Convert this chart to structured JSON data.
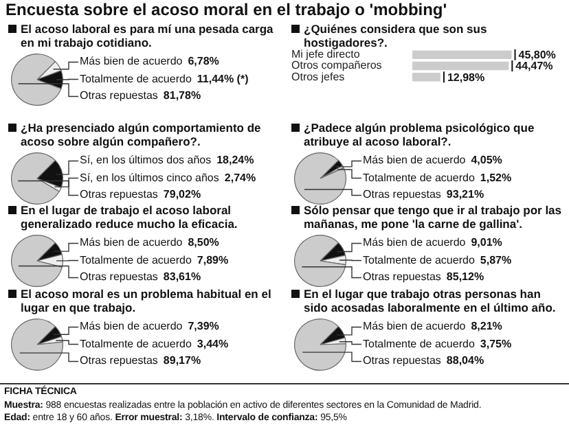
{
  "chart_data": [
    {
      "type": "pie",
      "title": "El acoso laboral es para mí una pesada carga en mi trabajo cotidiano.",
      "annotations": [
        "Encuesta sobre el acoso moral en el trabajo o 'mobbing'"
      ],
      "categories": [
        "Más bien de acuerdo",
        "Totalmente de acuerdo",
        "Otras repuestas"
      ],
      "values": [
        6.78,
        11.44,
        81.78
      ],
      "value_labels": [
        "6,78%",
        "11,44% (*)",
        "81,78%"
      ],
      "colors": [
        "#eeeeee",
        "#111111",
        "#cccccc"
      ]
    },
    {
      "type": "bar",
      "orientation": "horizontal",
      "title": "¿Quiénes considera que son sus hostigadores?.",
      "categories": [
        "Mi jefe directo",
        "Otros compañeros",
        "Otros jefes"
      ],
      "values": [
        45.8,
        44.47,
        12.98
      ],
      "value_labels": [
        "45,80%",
        "44,47%",
        "12,98%"
      ],
      "color": "#cccccc"
    },
    {
      "type": "pie",
      "title": "¿Ha presenciado algún comportamiento de acoso sobre algún compañero?.",
      "categories": [
        "Sí, en los últimos dos años",
        "Sí, en los últimos cinco años",
        "Otras repuestas"
      ],
      "values": [
        18.24,
        2.74,
        79.02
      ],
      "value_labels": [
        "18,24%",
        "2,74%",
        "79,02%"
      ],
      "colors": [
        "#111111",
        "#eeeeee",
        "#cccccc"
      ]
    },
    {
      "type": "pie",
      "title": "¿Padece algún problema psicológico que atribuye al acoso laboral?.",
      "categories": [
        "Más bien de acuerdo",
        "Totalmente de acuerdo",
        "Otras repuestas"
      ],
      "values": [
        4.05,
        1.52,
        93.21
      ],
      "value_labels": [
        "4,05%",
        "1,52%",
        "93,21%"
      ],
      "colors": [
        "#111111",
        "#eeeeee",
        "#cccccc"
      ]
    },
    {
      "type": "pie",
      "title": "En el lugar de trabajo el acoso laboral generalizado reduce mucho la eficacia.",
      "categories": [
        "Más bien de acuerdo",
        "Totalmente de acuerdo",
        "Otras repuestas"
      ],
      "values": [
        8.5,
        7.89,
        83.61
      ],
      "value_labels": [
        "8,50%",
        "7,89%",
        "83,61%"
      ],
      "colors": [
        "#111111",
        "#eeeeee",
        "#cccccc"
      ]
    },
    {
      "type": "pie",
      "title": "Sólo pensar que tengo que ir al trabajo por las mañanas, me pone 'la carne de gallina'.",
      "categories": [
        "Más bien de acuerdo",
        "Totalmente de acuerdo",
        "Otras repuestas"
      ],
      "values": [
        9.01,
        5.87,
        85.12
      ],
      "value_labels": [
        "9,01%",
        "5,87%",
        "85,12%"
      ],
      "colors": [
        "#111111",
        "#eeeeee",
        "#cccccc"
      ]
    },
    {
      "type": "pie",
      "title": "El acoso moral es un problema habitual en el lugar en que trabajo.",
      "categories": [
        "Más bien de acuerdo",
        "Totalmente de acuerdo",
        "Otras repuestas"
      ],
      "values": [
        7.39,
        3.44,
        89.17
      ],
      "value_labels": [
        "7,39%",
        "3,44%",
        "89,17%"
      ],
      "colors": [
        "#111111",
        "#eeeeee",
        "#cccccc"
      ]
    },
    {
      "type": "pie",
      "title": "En el lugar que trabajo otras personas han sido acosadas laboralmente en el último año.",
      "categories": [
        "Más bien de acuerdo",
        "Totalmente de acuerdo",
        "Otras repuestas"
      ],
      "values": [
        8.21,
        3.75,
        88.04
      ],
      "value_labels": [
        "8,21%",
        "3,75%",
        "88,04%"
      ],
      "colors": [
        "#111111",
        "#eeeeee",
        "#cccccc"
      ],
      "annotations": [
        "FICHA TÉCNICA",
        "Muestra: 988 encuestas realizadas entre la población en activo de diferentes sectores en la Comunidad de Madrid.",
        "Edad: entre 18 y 60 años. Error muestral: 3,18%. Intervalo de confianza: 95,5%"
      ]
    }
  ]
}
